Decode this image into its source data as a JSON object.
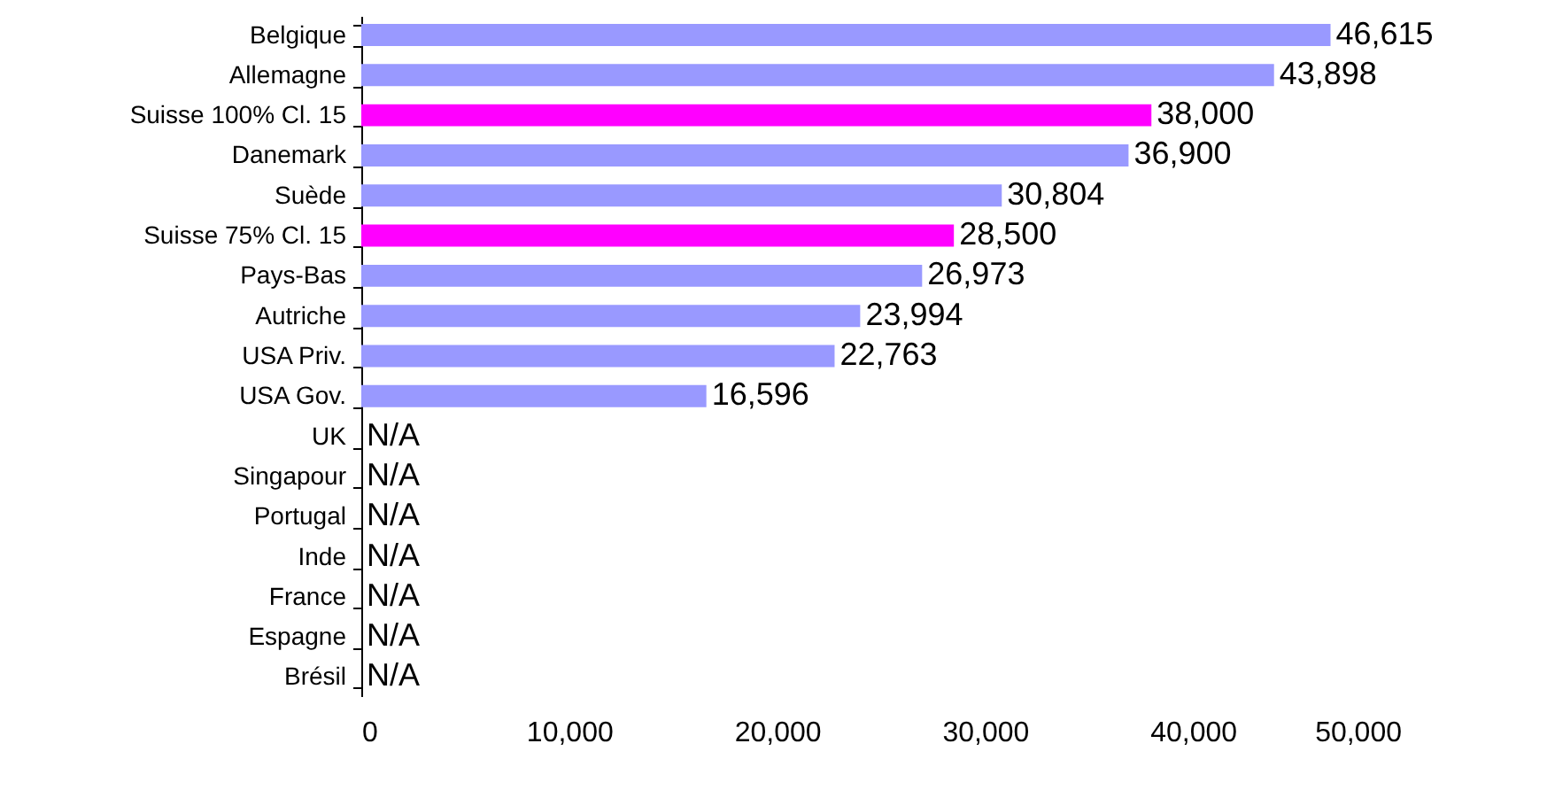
{
  "chart_data": {
    "type": "bar",
    "orientation": "horizontal",
    "categories": [
      "Belgique",
      "Allemagne",
      "Suisse 100% Cl. 15",
      "Danemark",
      "Suède",
      "Suisse 75% Cl. 15",
      "Pays-Bas",
      "Autriche",
      "USA Priv.",
      "USA Gov.",
      "UK",
      "Singapour",
      "Portugal",
      "Inde",
      "France",
      "Espagne",
      "Brésil"
    ],
    "values": [
      46615,
      43898,
      38000,
      36900,
      30804,
      28500,
      26973,
      23994,
      22763,
      16596,
      null,
      null,
      null,
      null,
      null,
      null,
      null
    ],
    "value_labels": [
      "46,615",
      "43,898",
      "38,000",
      "36,900",
      "30,804",
      "28,500",
      "26,973",
      "23,994",
      "22,763",
      "16,596",
      "N/A",
      "N/A",
      "N/A",
      "N/A",
      "N/A",
      "N/A",
      "N/A"
    ],
    "colors": [
      "#9999ff",
      "#9999ff",
      "#ff00ff",
      "#9999ff",
      "#9999ff",
      "#ff00ff",
      "#9999ff",
      "#9999ff",
      "#9999ff",
      "#9999ff",
      "#9999ff",
      "#9999ff",
      "#9999ff",
      "#9999ff",
      "#9999ff",
      "#9999ff",
      "#9999ff"
    ],
    "xlim": [
      0,
      50000
    ],
    "xticks": [
      0,
      {
        "value": 10000,
        "label": "10,000"
      },
      {
        "value": 20000,
        "label": "20,000"
      },
      {
        "value": 30000,
        "label": "30,000"
      },
      {
        "value": 40000,
        "label": "40,000"
      },
      {
        "value": 50000,
        "label": "50,000"
      }
    ],
    "grid": false
  }
}
